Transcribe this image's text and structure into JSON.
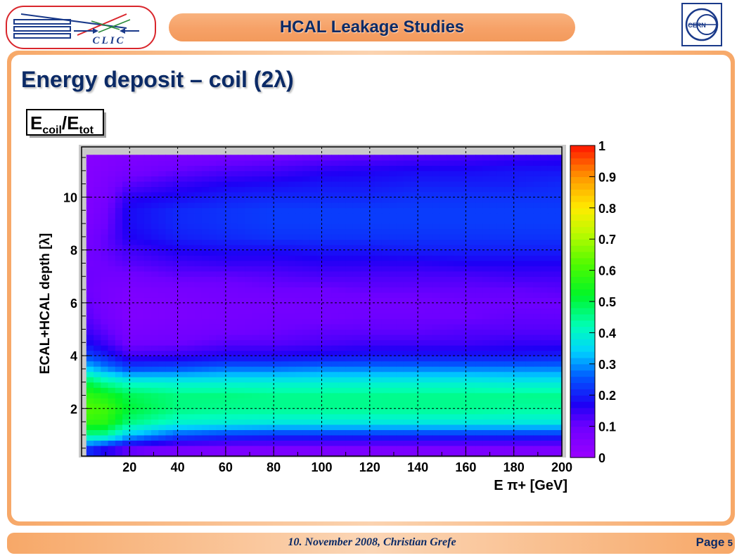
{
  "header": {
    "title": "HCAL Leakage Studies"
  },
  "logos": {
    "left": "CLIC",
    "right": "CERN"
  },
  "slide": {
    "title": "Energy deposit – coil (2λ)"
  },
  "footer": {
    "text": "10. November 2008, Christian Grefe",
    "page_label": "Page",
    "page_number": "5"
  },
  "chart_data": {
    "type": "heatmap",
    "title": "E_coil/E_tot",
    "title_main_1": "E",
    "title_sub_1": "coil",
    "title_slash": "/E",
    "title_sub_2": "tot",
    "xlabel": "E π+ [GeV]",
    "ylabel": "ECAL+HCAL depth [λ]",
    "xlim": [
      0,
      200
    ],
    "ylim": [
      0.2,
      11.9
    ],
    "zlim": [
      0,
      1
    ],
    "x_ticks": [
      20,
      40,
      60,
      80,
      100,
      120,
      140,
      160,
      180,
      200
    ],
    "y_ticks": [
      2,
      4,
      6,
      8,
      10
    ],
    "z_ticks": [
      0,
      0.1,
      0.2,
      0.3,
      0.4,
      0.5,
      0.6,
      0.7,
      0.8,
      0.9,
      1
    ],
    "x_tick_labels": [
      "20",
      "40",
      "60",
      "80",
      "100",
      "120",
      "140",
      "160",
      "180",
      "200"
    ],
    "y_tick_labels": [
      "2",
      "4",
      "6",
      "8",
      "10"
    ],
    "z_tick_labels": [
      "0",
      "0.1",
      "0.2",
      "0.3",
      "0.4",
      "0.5",
      "0.6",
      "0.7",
      "0.8",
      "0.9",
      "1"
    ],
    "grid": true,
    "colorbar": "right",
    "x": [
      2,
      10,
      20,
      40,
      60,
      80,
      100,
      120,
      140,
      160,
      180,
      200
    ],
    "y": [
      0.5,
      1.0,
      1.5,
      2.0,
      2.5,
      3.0,
      3.5,
      4.0,
      4.5,
      5.0,
      5.5,
      6.0,
      6.5,
      7.0,
      7.5,
      8.0,
      8.5,
      9.0,
      9.5,
      10.0,
      10.5,
      11.0,
      11.6
    ],
    "z": [
      [
        0.22,
        0.17,
        0.11,
        0.08,
        0.07,
        0.07,
        0.07,
        0.07,
        0.07,
        0.07,
        0.07,
        0.07
      ],
      [
        0.45,
        0.44,
        0.33,
        0.25,
        0.23,
        0.22,
        0.22,
        0.22,
        0.22,
        0.22,
        0.22,
        0.22
      ],
      [
        0.58,
        0.57,
        0.46,
        0.4,
        0.39,
        0.38,
        0.38,
        0.38,
        0.38,
        0.38,
        0.38,
        0.38
      ],
      [
        0.62,
        0.6,
        0.51,
        0.46,
        0.45,
        0.45,
        0.45,
        0.45,
        0.45,
        0.45,
        0.44,
        0.44
      ],
      [
        0.58,
        0.55,
        0.49,
        0.46,
        0.46,
        0.45,
        0.45,
        0.45,
        0.45,
        0.45,
        0.45,
        0.45
      ],
      [
        0.5,
        0.44,
        0.4,
        0.39,
        0.39,
        0.39,
        0.39,
        0.39,
        0.39,
        0.39,
        0.38,
        0.38
      ],
      [
        0.35,
        0.3,
        0.25,
        0.26,
        0.28,
        0.28,
        0.29,
        0.29,
        0.29,
        0.29,
        0.29,
        0.29
      ],
      [
        0.24,
        0.2,
        0.14,
        0.15,
        0.17,
        0.17,
        0.18,
        0.19,
        0.19,
        0.19,
        0.19,
        0.2
      ],
      [
        0.18,
        0.14,
        0.09,
        0.1,
        0.12,
        0.12,
        0.13,
        0.14,
        0.14,
        0.14,
        0.15,
        0.15
      ],
      [
        0.14,
        0.11,
        0.07,
        0.08,
        0.09,
        0.1,
        0.11,
        0.11,
        0.11,
        0.12,
        0.12,
        0.12
      ],
      [
        0.12,
        0.09,
        0.06,
        0.07,
        0.08,
        0.09,
        0.09,
        0.1,
        0.1,
        0.1,
        0.11,
        0.11
      ],
      [
        0.11,
        0.08,
        0.06,
        0.07,
        0.08,
        0.08,
        0.09,
        0.09,
        0.09,
        0.1,
        0.1,
        0.1
      ],
      [
        0.1,
        0.08,
        0.07,
        0.08,
        0.09,
        0.1,
        0.1,
        0.11,
        0.11,
        0.11,
        0.11,
        0.12
      ],
      [
        0.1,
        0.09,
        0.09,
        0.11,
        0.11,
        0.12,
        0.13,
        0.13,
        0.13,
        0.13,
        0.14,
        0.14
      ],
      [
        0.09,
        0.1,
        0.12,
        0.14,
        0.15,
        0.15,
        0.16,
        0.16,
        0.16,
        0.17,
        0.17,
        0.17
      ],
      [
        0.09,
        0.11,
        0.14,
        0.17,
        0.18,
        0.18,
        0.19,
        0.19,
        0.2,
        0.2,
        0.2,
        0.2
      ],
      [
        0.08,
        0.11,
        0.17,
        0.2,
        0.21,
        0.22,
        0.22,
        0.22,
        0.22,
        0.22,
        0.22,
        0.22
      ],
      [
        0.07,
        0.1,
        0.18,
        0.21,
        0.22,
        0.23,
        0.23,
        0.23,
        0.23,
        0.23,
        0.23,
        0.23
      ],
      [
        0.06,
        0.09,
        0.18,
        0.21,
        0.22,
        0.23,
        0.23,
        0.23,
        0.23,
        0.23,
        0.23,
        0.23
      ],
      [
        0.06,
        0.08,
        0.16,
        0.18,
        0.2,
        0.21,
        0.21,
        0.21,
        0.22,
        0.22,
        0.22,
        0.22
      ],
      [
        0.05,
        0.07,
        0.12,
        0.15,
        0.17,
        0.18,
        0.19,
        0.19,
        0.2,
        0.2,
        0.2,
        0.21
      ],
      [
        0.05,
        0.06,
        0.08,
        0.11,
        0.13,
        0.14,
        0.16,
        0.17,
        0.18,
        0.18,
        0.19,
        0.19
      ],
      [
        0.04,
        0.05,
        0.06,
        0.07,
        0.08,
        0.09,
        0.1,
        0.11,
        0.12,
        0.13,
        0.14,
        0.15
      ]
    ]
  }
}
